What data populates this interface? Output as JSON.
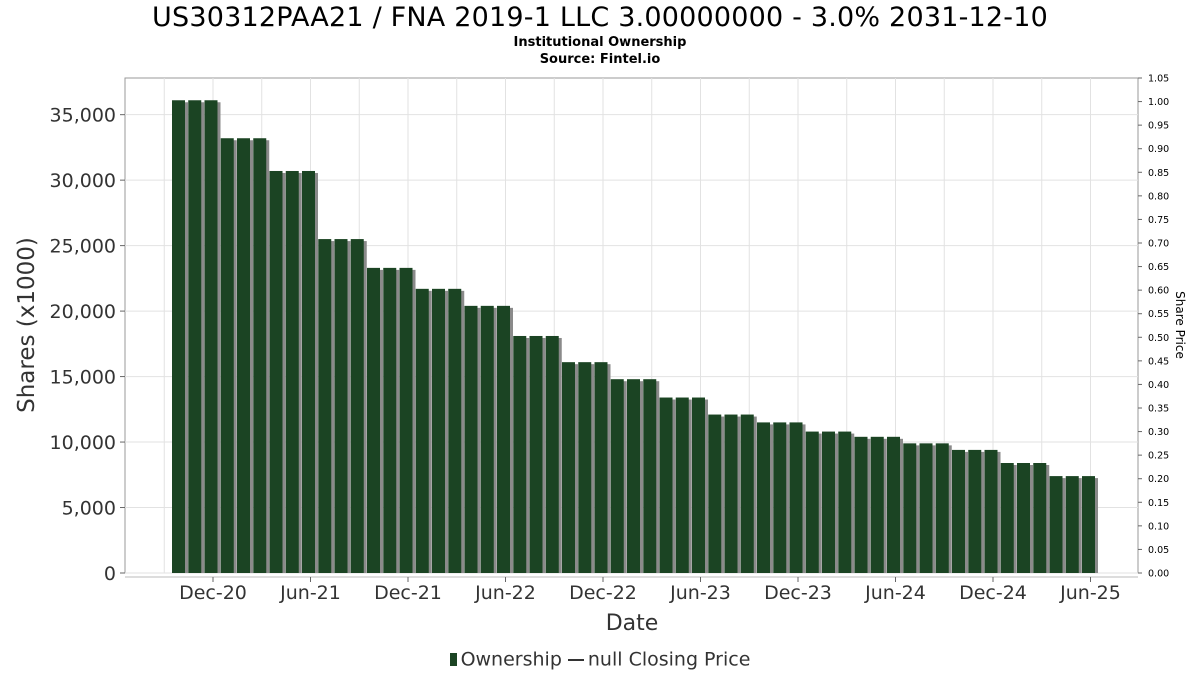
{
  "title": "US30312PAA21 / FNA 2019-1 LLC 3.00000000 - 3.0% 2031-12-10",
  "subtitle": "Institutional Ownership",
  "source": "Source: Fintel.io",
  "legend": {
    "ownership": "Ownership",
    "price": "null Closing Price"
  },
  "colors": {
    "bar": "#1b4423",
    "bar_shadow": "#8a8a8a",
    "grid": "#e2e2e2",
    "axis": "#999999"
  },
  "chart_data": {
    "type": "bar",
    "xlabel": "Date",
    "ylabel": "Shares (x1000)",
    "y2label": "Share Price",
    "ylim": [
      0,
      37800
    ],
    "y2lim": [
      0,
      1.05
    ],
    "grid": true,
    "legend_position": "bottom",
    "yticks": [
      "0",
      "5,000",
      "10,000",
      "15,000",
      "20,000",
      "25,000",
      "30,000",
      "35,000"
    ],
    "y2ticks": [
      "0.00",
      "0.05",
      "0.10",
      "0.15",
      "0.20",
      "0.25",
      "0.30",
      "0.35",
      "0.40",
      "0.45",
      "0.50",
      "0.55",
      "0.60",
      "0.65",
      "0.70",
      "0.75",
      "0.80",
      "0.85",
      "0.90",
      "0.95",
      "1.00",
      "1.05"
    ],
    "xticks": [
      "Dec-20",
      "Jun-21",
      "Dec-21",
      "Jun-22",
      "Dec-22",
      "Jun-23",
      "Dec-23",
      "Jun-24",
      "Dec-24",
      "Jun-25"
    ],
    "series": [
      {
        "name": "Ownership",
        "values": [
          36100,
          36100,
          36100,
          33200,
          33200,
          33200,
          30700,
          30700,
          30700,
          25500,
          25500,
          25500,
          23300,
          23300,
          23300,
          21700,
          21700,
          21700,
          20400,
          20400,
          20400,
          18100,
          18100,
          18100,
          16100,
          16100,
          16100,
          14800,
          14800,
          14800,
          13400,
          13400,
          13400,
          12100,
          12100,
          12100,
          11500,
          11500,
          11500,
          10800,
          10800,
          10800,
          10400,
          10400,
          10400,
          9900,
          9900,
          9900,
          9400,
          9400,
          9400,
          8400,
          8400,
          8400,
          7400,
          7400,
          7400
        ]
      }
    ]
  }
}
